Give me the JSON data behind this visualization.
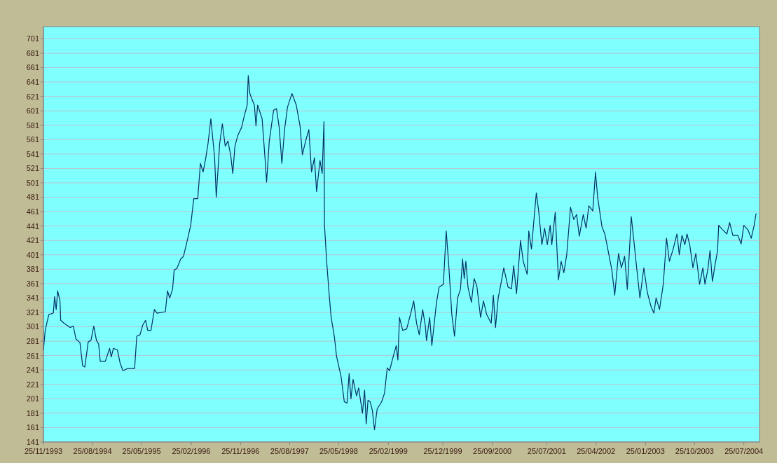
{
  "chart_data": {
    "type": "line",
    "grid": "y",
    "ylim": [
      141,
      718
    ],
    "yticks": [
      141,
      161,
      181,
      201,
      221,
      241,
      261,
      281,
      301,
      321,
      341,
      361,
      381,
      401,
      421,
      441,
      461,
      481,
      501,
      521,
      541,
      561,
      581,
      601,
      621,
      641,
      661,
      681,
      701
    ],
    "xlim": [
      "1993-11-25",
      "2004-10-20"
    ],
    "xticks": [
      {
        "value": "1993-11-25",
        "label": "25/11/1993"
      },
      {
        "value": "1994-08-25",
        "label": "25/08/1994"
      },
      {
        "value": "1995-05-25",
        "label": "25/05/1995"
      },
      {
        "value": "1996-02-25",
        "label": "25/02/1996"
      },
      {
        "value": "1996-11-25",
        "label": "25/11/1996"
      },
      {
        "value": "1997-08-25",
        "label": "25/08/1997"
      },
      {
        "value": "1998-05-25",
        "label": "25/05/1998"
      },
      {
        "value": "1999-02-25",
        "label": "25/02/1999"
      },
      {
        "value": "1999-12-25",
        "label": "25/12/1999"
      },
      {
        "value": "2000-09-25",
        "label": "25/09/2000"
      },
      {
        "value": "2001-07-25",
        "label": "25/07/2001"
      },
      {
        "value": "2002-04-25",
        "label": "25/04/2002"
      },
      {
        "value": "2003-01-25",
        "label": "25/01/2003"
      },
      {
        "value": "2003-10-25",
        "label": "25/10/2003"
      },
      {
        "value": "2004-07-25",
        "label": "25/07/2004"
      }
    ],
    "marker": "none",
    "line_style": "solid",
    "x": [
      "1993-11-25",
      "1993-12-04",
      "1993-12-10",
      "1993-12-25",
      "1994-01-19",
      "1994-01-26",
      "1994-02-04",
      "1994-02-12",
      "1994-02-25",
      "1994-03-01",
      "1994-03-20",
      "1994-04-22",
      "1994-05-10",
      "1994-05-25",
      "1994-06-16",
      "1994-07-01",
      "1994-07-13",
      "1994-08-01",
      "1994-08-16",
      "1994-09-01",
      "1994-09-16",
      "1994-09-28",
      "1994-10-07",
      "1994-11-04",
      "1994-11-28",
      "1994-12-07",
      "1994-12-19",
      "1995-01-10",
      "1995-01-25",
      "1995-02-10",
      "1995-03-07",
      "1995-04-16",
      "1995-04-28",
      "1995-05-16",
      "1995-06-01",
      "1995-06-16",
      "1995-06-28",
      "1995-07-16",
      "1995-08-04",
      "1995-08-19",
      "1995-10-04",
      "1995-10-16",
      "1995-10-28",
      "1995-11-13",
      "1995-11-22",
      "1995-12-07",
      "1995-12-28",
      "1996-01-13",
      "1996-02-01",
      "1996-02-22",
      "1996-03-10",
      "1996-04-01",
      "1996-04-16",
      "1996-05-01",
      "1996-05-16",
      "1996-05-28",
      "1996-06-13",
      "1996-07-04",
      "1996-07-13",
      "1996-08-01",
      "1996-08-16",
      "1996-09-01",
      "1996-09-16",
      "1996-10-01",
      "1996-10-13",
      "1996-10-25",
      "1996-11-10",
      "1996-12-01",
      "1996-12-16",
      "1997-01-01",
      "1997-01-07",
      "1997-01-16",
      "1997-01-28",
      "1997-02-10",
      "1997-02-19",
      "1997-02-28",
      "1997-03-25",
      "1997-04-10",
      "1997-04-19",
      "1997-05-04",
      "1997-05-28",
      "1997-06-13",
      "1997-06-28",
      "1997-07-13",
      "1997-07-28",
      "1997-08-13",
      "1997-09-07",
      "1997-10-01",
      "1997-10-22",
      "1997-11-04",
      "1997-11-22",
      "1997-12-10",
      "1997-12-25",
      "1998-01-10",
      "1998-01-22",
      "1998-02-10",
      "1998-02-22",
      "1998-03-04",
      "1998-03-07",
      "1998-03-19",
      "1998-04-01",
      "1998-04-13",
      "1998-05-01",
      "1998-05-13",
      "1998-06-07",
      "1998-06-25",
      "1998-07-10",
      "1998-07-22",
      "1998-08-01",
      "1998-08-13",
      "1998-09-01",
      "1998-09-13",
      "1998-10-04",
      "1998-10-16",
      "1998-10-25",
      "1998-11-04",
      "1998-11-16",
      "1998-11-28",
      "1998-12-10",
      "1998-12-25",
      "1999-01-19",
      "1999-02-04",
      "1999-02-19",
      "1999-03-04",
      "1999-03-19",
      "1999-04-10",
      "1999-04-19",
      "1999-04-28",
      "1999-05-16",
      "1999-06-07",
      "1999-07-01",
      "1999-07-16",
      "1999-08-01",
      "1999-08-16",
      "1999-09-04",
      "1999-09-19",
      "1999-09-25",
      "1999-10-13",
      "1999-10-25",
      "1999-11-19",
      "1999-12-04",
      "1999-12-28",
      "2000-01-13",
      "2000-01-28",
      "2000-02-13",
      "2000-02-28",
      "2000-03-16",
      "2000-04-01",
      "2000-04-13",
      "2000-04-22",
      "2000-05-01",
      "2000-05-13",
      "2000-06-01",
      "2000-06-16",
      "2000-07-01",
      "2000-07-22",
      "2000-08-07",
      "2000-08-25",
      "2000-09-19",
      "2000-10-01",
      "2000-10-13",
      "2000-10-28",
      "2000-11-13",
      "2000-11-28",
      "2000-12-22",
      "2001-01-10",
      "2001-01-22",
      "2001-02-07",
      "2001-03-01",
      "2001-03-16",
      "2001-04-07",
      "2001-04-16",
      "2001-05-01",
      "2001-05-19",
      "2001-05-28",
      "2001-06-10",
      "2001-06-28",
      "2001-07-13",
      "2001-07-28",
      "2001-08-13",
      "2001-08-22",
      "2001-09-10",
      "2001-09-28",
      "2001-10-13",
      "2001-10-28",
      "2001-11-13",
      "2001-12-04",
      "2001-12-22",
      "2002-01-07",
      "2002-01-22",
      "2002-02-13",
      "2002-03-01",
      "2002-03-16",
      "2002-04-07",
      "2002-04-22",
      "2002-05-04",
      "2002-05-28",
      "2002-06-13",
      "2002-07-04",
      "2002-07-22",
      "2002-08-07",
      "2002-08-28",
      "2002-09-13",
      "2002-10-01",
      "2002-10-16",
      "2002-11-07",
      "2002-11-22",
      "2002-12-07",
      "2002-12-25",
      "2003-01-16",
      "2003-02-04",
      "2003-02-25",
      "2003-03-13",
      "2003-03-25",
      "2003-04-13",
      "2003-05-04",
      "2003-05-22",
      "2003-06-07",
      "2003-06-28",
      "2003-07-19",
      "2003-08-01",
      "2003-08-16",
      "2003-09-01",
      "2003-09-13",
      "2003-09-28",
      "2003-10-16",
      "2003-11-01",
      "2003-11-22",
      "2003-12-10",
      "2003-12-22",
      "2004-01-07",
      "2004-01-19",
      "2004-02-01",
      "2004-02-16",
      "2004-03-01",
      "2004-03-07",
      "2004-03-28",
      "2004-04-22",
      "2004-05-07",
      "2004-05-25",
      "2004-06-22",
      "2004-07-10",
      "2004-07-25",
      "2004-08-16",
      "2004-09-04",
      "2004-09-19",
      "2004-10-01"
    ],
    "series": [
      {
        "color": "#003366",
        "values": [
          269,
          294,
          302,
          318,
          320,
          343,
          325,
          351,
          337,
          310,
          306,
          300,
          302,
          284,
          279,
          247,
          245,
          280,
          282,
          302,
          282,
          277,
          253,
          253,
          271,
          259,
          271,
          269,
          251,
          240,
          243,
          243,
          288,
          290,
          304,
          310,
          296,
          296,
          325,
          320,
          322,
          351,
          341,
          353,
          380,
          382,
          395,
          399,
          419,
          442,
          479,
          479,
          528,
          516,
          536,
          555,
          590,
          536,
          481,
          555,
          583,
          552,
          559,
          540,
          514,
          552,
          567,
          578,
          594,
          609,
          650,
          625,
          617,
          609,
          580,
          609,
          590,
          536,
          502,
          559,
          602,
          604,
          578,
          528,
          575,
          606,
          625,
          609,
          580,
          540,
          559,
          575,
          516,
          536,
          489,
          532,
          514,
          586,
          442,
          392,
          349,
          314,
          287,
          260,
          232,
          197,
          195,
          236,
          201,
          228,
          205,
          216,
          181,
          213,
          166,
          199,
          197,
          185,
          158,
          187,
          197,
          209,
          244,
          240,
          255,
          275,
          255,
          314,
          296,
          298,
          321,
          337,
          306,
          290,
          325,
          302,
          282,
          314,
          275,
          333,
          356,
          360,
          434,
          383,
          318,
          288,
          341,
          353,
          395,
          368,
          392,
          356,
          335,
          368,
          358,
          314,
          337,
          318,
          306,
          345,
          300,
          341,
          362,
          383,
          356,
          354,
          386,
          347,
          421,
          392,
          374,
          434,
          409,
          462,
          487,
          462,
          415,
          438,
          415,
          442,
          415,
          460,
          366,
          392,
          376,
          401,
          467,
          450,
          457,
          427,
          457,
          438,
          469,
          462,
          516,
          481,
          440,
          430,
          403,
          380,
          345,
          403,
          383,
          399,
          353,
          454,
          419,
          383,
          341,
          383,
          349,
          329,
          320,
          341,
          325,
          360,
          424,
          392,
          409,
          430,
          401,
          428,
          415,
          430,
          415,
          383,
          403,
          360,
          383,
          360,
          381,
          407,
          364,
          387,
          407,
          442,
          436,
          430,
          446,
          428,
          428,
          416,
          442,
          436,
          424,
          440,
          458
        ]
      }
    ]
  }
}
